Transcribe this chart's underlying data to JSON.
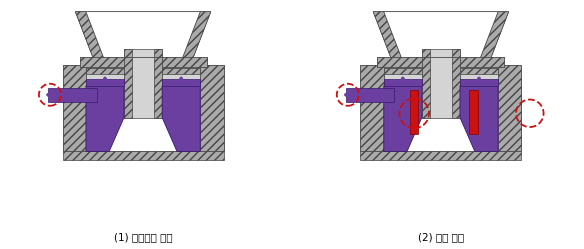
{
  "label1": "(1) 배출속도 지연",
  "label2": "(2) 역류 발생",
  "bg_color": "#ffffff",
  "fig_width": 5.84,
  "fig_height": 2.49,
  "dpi": 100,
  "label_fontsize": 7.5,
  "purple_color": "#6B3FA0",
  "red_color": "#CC1111",
  "gray_light": "#D4D4D4",
  "gray_mid": "#AAAAAA",
  "gray_dark": "#777777",
  "white": "#FFFFFF",
  "outline": "#444444"
}
